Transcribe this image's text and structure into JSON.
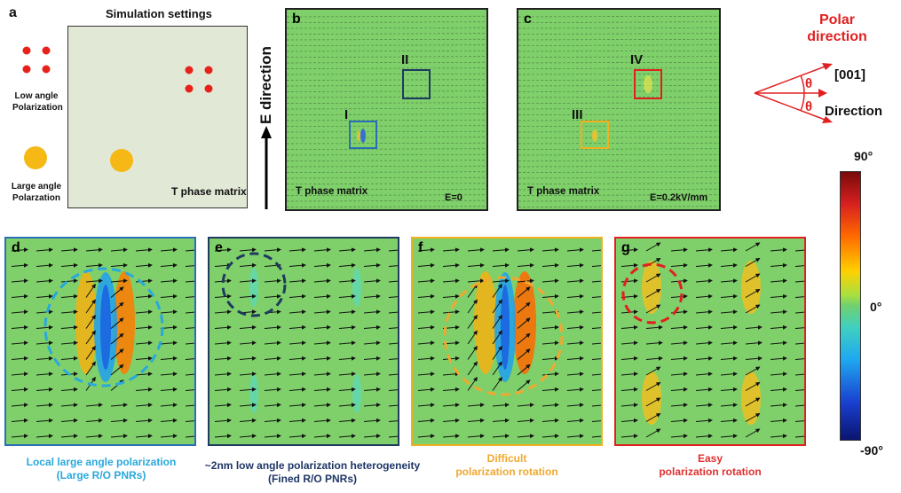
{
  "panel_a": {
    "letter": "a",
    "title": "Simulation settings",
    "low_label_1": "Low angle",
    "low_label_2": "Polarization",
    "large_label_1": "Large angle",
    "large_label_2": "Polarzation",
    "matrix_label": "T phase matrix",
    "field_label": "E direction"
  },
  "panel_b": {
    "letter": "b",
    "matrix_label": "T phase matrix",
    "field_value": "E=0",
    "box1": "I",
    "box2": "II"
  },
  "panel_c": {
    "letter": "c",
    "matrix_label": "T phase matrix",
    "field_value": "E=0.2kV/mm",
    "box1": "III",
    "box2": "IV"
  },
  "polar": {
    "title_1": "Polar",
    "title_2": "direction",
    "axis": "[001]",
    "theta": "θ",
    "direction": "Direction"
  },
  "colorbar": {
    "max": "90°",
    "mid": "0°",
    "min": "-90°"
  },
  "panels_bottom": [
    {
      "letter": "d",
      "caption_1": "Local large angle polarization",
      "caption_2": "(Large R/O PNRs)"
    },
    {
      "letter": "e",
      "caption_1": "~2nm low angle polarization heterogeneity",
      "caption_2": "(Fined R/O PNRs)"
    },
    {
      "letter": "f",
      "caption_1": "Difficult",
      "caption_2": "polarization rotation"
    },
    {
      "letter": "g",
      "caption_1": "Easy",
      "caption_2": "polarization rotation"
    }
  ],
  "colors": {
    "blue_box": "#2a6fb5",
    "dark_box": "#1e3a5f",
    "yellow_box": "#f0b020",
    "red_box": "#e02020",
    "caption_d": "#29a8dd",
    "caption_e": "#1e3566",
    "caption_f": "#f0a830",
    "caption_g": "#e03030",
    "matrix_green": "#7fd06a"
  }
}
